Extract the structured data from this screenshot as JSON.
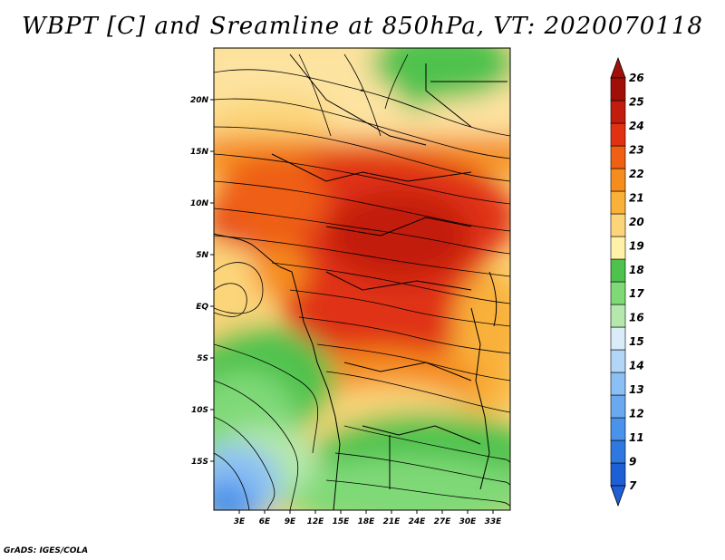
{
  "title": "WBPT [C] and Sreamline at 850hPa, VT: 2020070118",
  "credit": "GrADS: IGES/COLA",
  "map": {
    "lat_ticks": [
      "20N",
      "15N",
      "10N",
      "5N",
      "EQ",
      "5S",
      "10S",
      "15S"
    ],
    "lon_ticks": [
      "3E",
      "6E",
      "9E",
      "12E",
      "15E",
      "18E",
      "21E",
      "24E",
      "27E",
      "30E",
      "33E"
    ],
    "extent": {
      "lon_min": 0,
      "lon_max": 35,
      "lat_min": -20,
      "lat_max": 25
    }
  },
  "colorbar": {
    "labels": [
      "7",
      "9",
      "11",
      "12",
      "13",
      "14",
      "15",
      "16",
      "17",
      "18",
      "19",
      "20",
      "21",
      "22",
      "23",
      "24",
      "25",
      "26"
    ],
    "colors": [
      "#1e5fd6",
      "#2f78e0",
      "#4a92ea",
      "#6aa9f0",
      "#8cc0f4",
      "#b2d6f7",
      "#d9ecf8",
      "#b4e8ac",
      "#7fd977",
      "#4fc24d",
      "#fff2a8",
      "#fcd57a",
      "#f9b13a",
      "#f58c1e",
      "#ef5f14",
      "#e03212",
      "#c21c0f",
      "#a01008"
    ]
  }
}
